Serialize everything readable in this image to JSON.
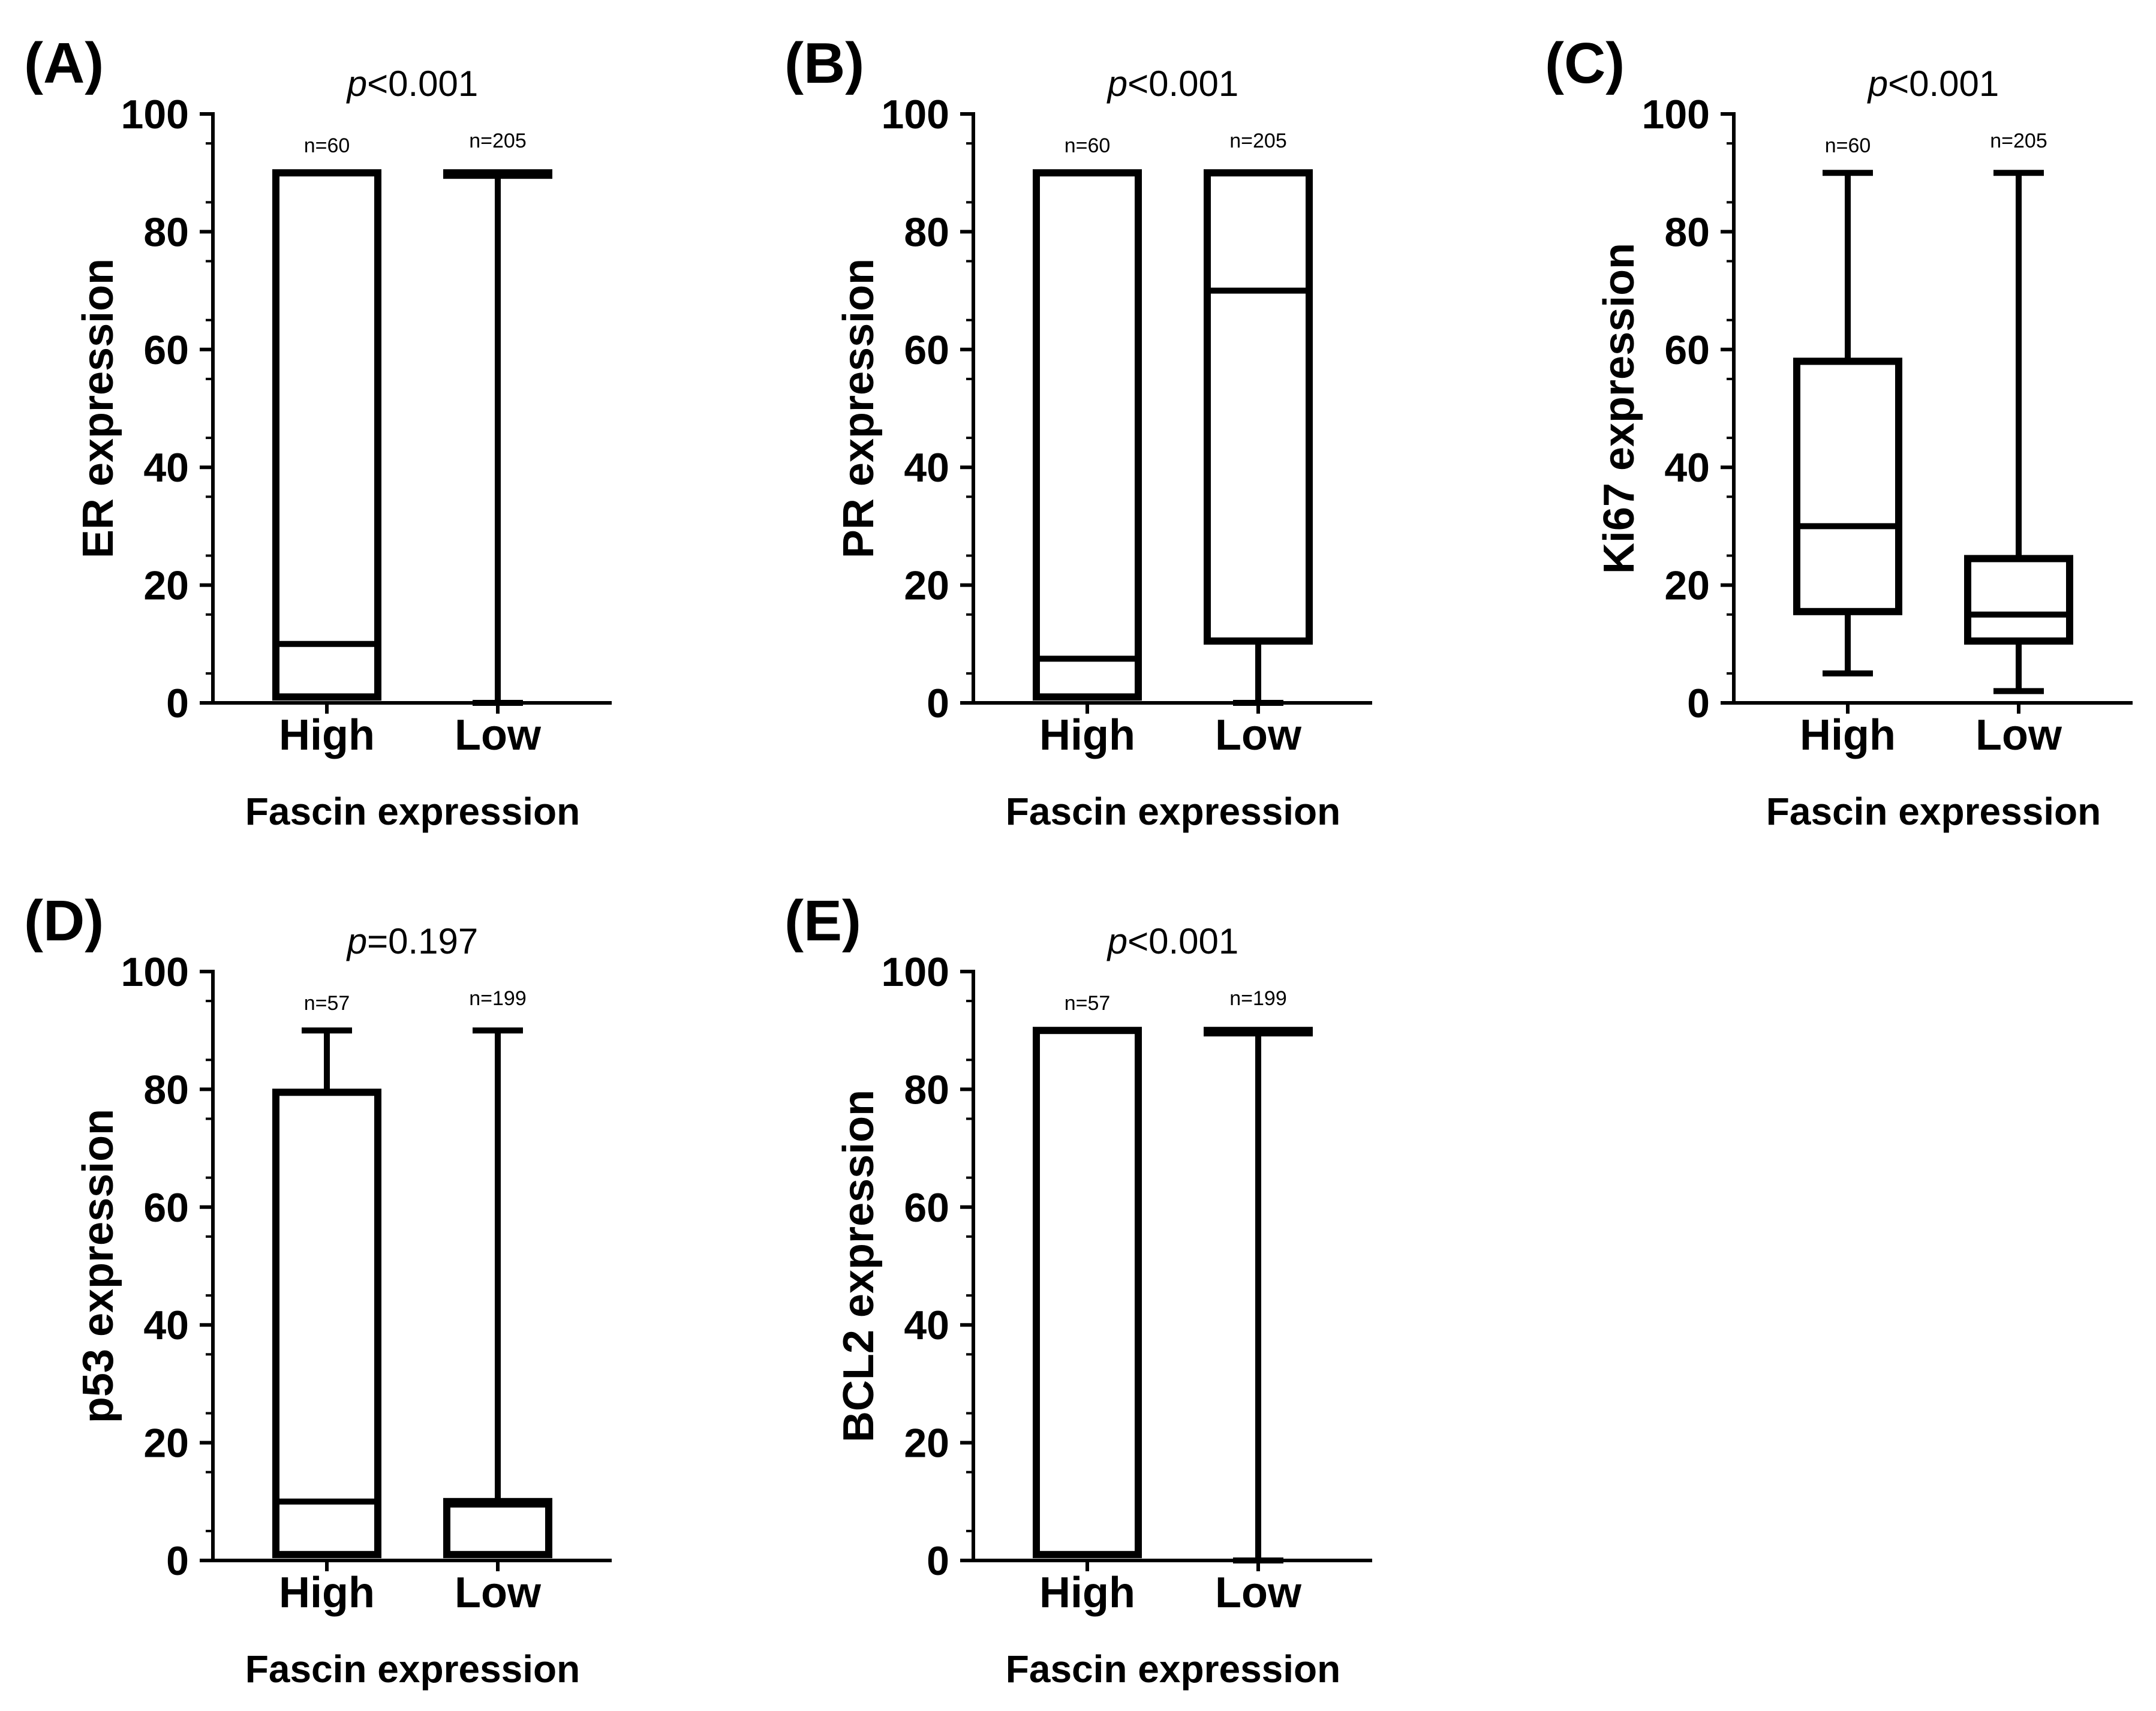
{
  "chart_data": [
    {
      "panel": "(A)",
      "type": "box",
      "pvalue_prefix": "p",
      "pvalue_rest": "<0.001",
      "ylabel": "ER expression",
      "xlabel": "Fascin expression",
      "ylim": [
        0,
        100
      ],
      "yticks": [
        "0",
        "20",
        "40",
        "60",
        "80",
        "100"
      ],
      "groups": [
        {
          "name": "High",
          "n": "n=60",
          "min": 1,
          "q1": 1,
          "median": 10,
          "q3": 90,
          "max": 90
        },
        {
          "name": "Low",
          "n": "n=205",
          "min": 0,
          "q1": 90,
          "median": 90,
          "q3": 90,
          "max": 90
        }
      ]
    },
    {
      "panel": "(B)",
      "type": "box",
      "pvalue_prefix": "p",
      "pvalue_rest": "<0.001",
      "ylabel": "PR expression",
      "xlabel": "Fascin expression",
      "ylim": [
        0,
        100
      ],
      "yticks": [
        "0",
        "20",
        "40",
        "60",
        "80",
        "100"
      ],
      "groups": [
        {
          "name": "High",
          "n": "n=60",
          "min": 1,
          "q1": 1,
          "median": 7.5,
          "q3": 90,
          "max": 90
        },
        {
          "name": "Low",
          "n": "n=205",
          "min": 0,
          "q1": 10.5,
          "median": 70,
          "q3": 90,
          "max": 90
        }
      ]
    },
    {
      "panel": "(C)",
      "type": "box",
      "pvalue_prefix": "p",
      "pvalue_rest": "<0.001",
      "ylabel": "Ki67 expression",
      "xlabel": "Fascin expression",
      "ylim": [
        0,
        100
      ],
      "yticks": [
        "0",
        "20",
        "40",
        "60",
        "80",
        "100"
      ],
      "groups": [
        {
          "name": "High",
          "n": "n=60",
          "min": 5,
          "q1": 15.5,
          "median": 30,
          "q3": 58,
          "max": 90
        },
        {
          "name": "Low",
          "n": "n=205",
          "min": 2,
          "q1": 10.5,
          "median": 15,
          "q3": 24.5,
          "max": 90
        }
      ]
    },
    {
      "panel": "(D)",
      "type": "box",
      "pvalue_prefix": "p",
      "pvalue_rest": "=0.197",
      "ylabel": "p53 expression",
      "xlabel": "Fascin expression",
      "ylim": [
        0,
        100
      ],
      "yticks": [
        "0",
        "20",
        "40",
        "60",
        "80",
        "100"
      ],
      "groups": [
        {
          "name": "High",
          "n": "n=57",
          "min": 1,
          "q1": 1,
          "median": 10,
          "q3": 79.5,
          "max": 90
        },
        {
          "name": "Low",
          "n": "n=199",
          "min": 1,
          "q1": 1,
          "median": 9.5,
          "q3": 10,
          "max": 90
        }
      ]
    },
    {
      "panel": "(E)",
      "type": "box",
      "pvalue_prefix": "p",
      "pvalue_rest": "<0.001",
      "ylabel": "BCL2 expression",
      "xlabel": "Fascin expression",
      "ylim": [
        0,
        100
      ],
      "yticks": [
        "0",
        "20",
        "40",
        "60",
        "80",
        "100"
      ],
      "groups": [
        {
          "name": "High",
          "n": "n=57",
          "min": 1,
          "q1": 1,
          "median": 90,
          "q3": 90,
          "max": 90
        },
        {
          "name": "Low",
          "n": "n=199",
          "min": 0,
          "q1": 90,
          "median": 90,
          "q3": 90,
          "max": 90
        }
      ]
    }
  ]
}
